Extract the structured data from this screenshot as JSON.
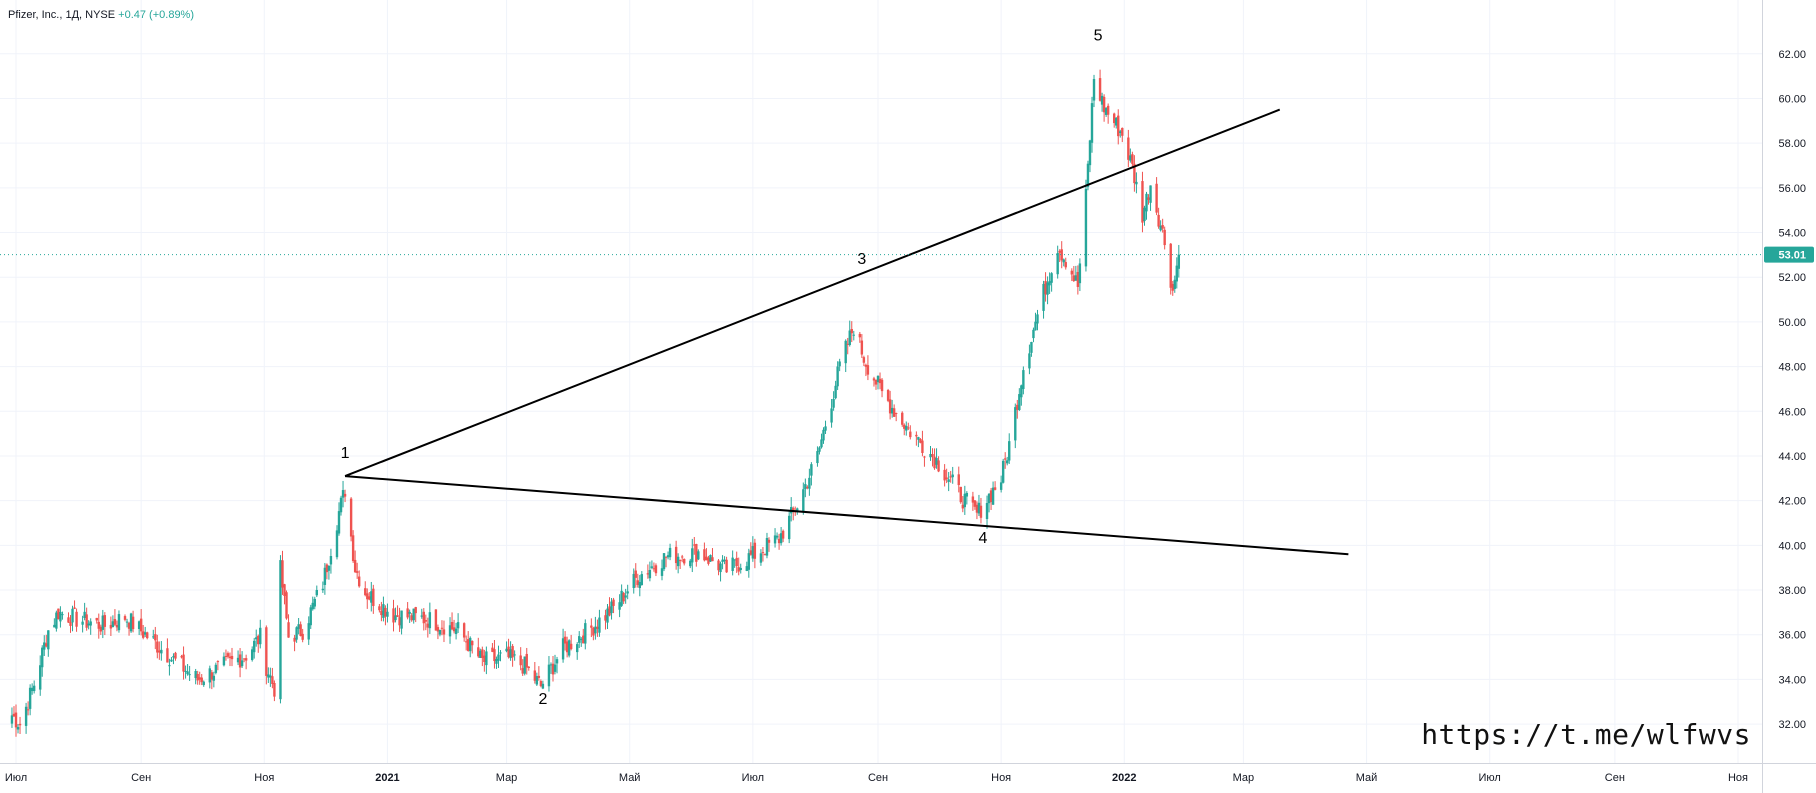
{
  "header": {
    "symbol": "Pfizer, Inc., 1Д, NYSE",
    "change": "+0.47 (+0.89%)"
  },
  "watermark": "https://t.me/wlfwvs",
  "colors": {
    "up": "#26a69a",
    "down": "#ef5350",
    "grid": "#f0f3fa",
    "trendline": "#000000",
    "price_line": "#26a69a"
  },
  "chart_data": {
    "type": "candlestick",
    "title": "",
    "ylim": [
      31.2,
      63.6
    ],
    "y_ticks": [
      "32.00",
      "34.00",
      "36.00",
      "38.00",
      "40.00",
      "42.00",
      "44.00",
      "46.00",
      "48.00",
      "50.00",
      "52.00",
      "54.00",
      "56.00",
      "58.00",
      "60.00",
      "62.00"
    ],
    "x_ticks": [
      {
        "label": "Июл",
        "date": "2020-07-01"
      },
      {
        "label": "Сен",
        "date": "2020-09-01"
      },
      {
        "label": "Ноя",
        "date": "2020-11-01"
      },
      {
        "label": "2021",
        "date": "2021-01-01"
      },
      {
        "label": "Мар",
        "date": "2021-03-01"
      },
      {
        "label": "Май",
        "date": "2021-05-01"
      },
      {
        "label": "Июл",
        "date": "2021-07-01"
      },
      {
        "label": "Сен",
        "date": "2021-09-01"
      },
      {
        "label": "Ноя",
        "date": "2021-11-01"
      },
      {
        "label": "2022",
        "date": "2022-01-01"
      },
      {
        "label": "Мар",
        "date": "2022-03-01"
      },
      {
        "label": "Май",
        "date": "2022-05-01"
      },
      {
        "label": "Июл",
        "date": "2022-07-01"
      },
      {
        "label": "Сен",
        "date": "2022-09-01"
      },
      {
        "label": "Ноя",
        "date": "2022-11-01"
      }
    ],
    "last_price": "53.01",
    "close_anchors": [
      [
        "2020-06-29",
        32.4
      ],
      [
        "2020-07-03",
        32.0
      ],
      [
        "2020-07-10",
        33.8
      ],
      [
        "2020-07-17",
        36.2
      ],
      [
        "2020-07-22",
        37.0
      ],
      [
        "2020-07-31",
        36.7
      ],
      [
        "2020-08-14",
        36.4
      ],
      [
        "2020-08-24",
        36.8
      ],
      [
        "2020-09-02",
        36.1
      ],
      [
        "2020-09-18",
        34.8
      ],
      [
        "2020-09-29",
        34.0
      ],
      [
        "2020-10-12",
        34.6
      ],
      [
        "2020-10-23",
        35.1
      ],
      [
        "2020-10-30",
        35.9
      ],
      [
        "2020-11-02",
        34.6
      ],
      [
        "2020-11-06",
        33.6
      ],
      [
        "2020-11-09",
        38.9
      ],
      [
        "2020-11-13",
        35.9
      ],
      [
        "2020-11-20",
        36.2
      ],
      [
        "2020-11-30",
        38.3
      ],
      [
        "2020-12-08",
        41.5
      ],
      [
        "2020-12-11",
        42.5
      ],
      [
        "2020-12-16",
        39.0
      ],
      [
        "2020-12-21",
        37.9
      ],
      [
        "2021-01-04",
        36.9
      ],
      [
        "2021-01-21",
        36.7
      ],
      [
        "2021-02-05",
        36.2
      ],
      [
        "2021-02-17",
        34.8
      ],
      [
        "2021-03-01",
        35.0
      ],
      [
        "2021-03-10",
        34.6
      ],
      [
        "2021-03-18",
        33.7
      ],
      [
        "2021-03-29",
        35.4
      ],
      [
        "2021-04-12",
        36.3
      ],
      [
        "2021-04-23",
        37.2
      ],
      [
        "2021-05-05",
        38.6
      ],
      [
        "2021-05-19",
        39.5
      ],
      [
        "2021-06-04",
        39.7
      ],
      [
        "2021-06-18",
        38.9
      ],
      [
        "2021-07-02",
        39.6
      ],
      [
        "2021-07-14",
        40.3
      ],
      [
        "2021-07-23",
        41.8
      ],
      [
        "2021-08-02",
        44.0
      ],
      [
        "2021-08-09",
        46.5
      ],
      [
        "2021-08-13",
        48.0
      ],
      [
        "2021-08-20",
        49.8
      ],
      [
        "2021-08-25",
        48.4
      ],
      [
        "2021-09-03",
        46.8
      ],
      [
        "2021-09-16",
        45.2
      ],
      [
        "2021-09-30",
        43.8
      ],
      [
        "2021-10-13",
        42.1
      ],
      [
        "2021-10-20",
        41.4
      ],
      [
        "2021-11-01",
        43.0
      ],
      [
        "2021-11-05",
        44.5
      ],
      [
        "2021-11-12",
        48.0
      ],
      [
        "2021-11-22",
        51.3
      ],
      [
        "2021-11-29",
        53.4
      ],
      [
        "2021-12-03",
        52.8
      ],
      [
        "2021-12-09",
        51.6
      ],
      [
        "2021-12-13",
        55.6
      ],
      [
        "2021-12-17",
        60.9
      ],
      [
        "2021-12-22",
        59.6
      ],
      [
        "2021-12-31",
        58.4
      ],
      [
        "2022-01-05",
        56.9
      ],
      [
        "2022-01-10",
        54.8
      ],
      [
        "2022-01-14",
        56.2
      ],
      [
        "2022-01-21",
        53.6
      ],
      [
        "2022-01-25",
        51.4
      ],
      [
        "2022-01-28",
        53.01
      ]
    ],
    "trendlines": [
      {
        "from": {
          "date": "2020-12-11",
          "price": 43.1
        },
        "to": {
          "date": "2022-03-19",
          "price": 59.5
        }
      },
      {
        "from": {
          "date": "2020-12-11",
          "price": 43.1
        },
        "to": {
          "date": "2022-04-22",
          "price": 39.6
        }
      }
    ],
    "annotations": [
      {
        "text": "1",
        "date": "2020-12-11",
        "price": 43.9
      },
      {
        "text": "2",
        "date": "2021-03-19",
        "price": 32.9
      },
      {
        "text": "3",
        "date": "2021-08-24",
        "price": 52.6
      },
      {
        "text": "4",
        "date": "2021-10-23",
        "price": 40.1
      },
      {
        "text": "5",
        "date": "2021-12-19",
        "price": 62.6
      }
    ]
  }
}
